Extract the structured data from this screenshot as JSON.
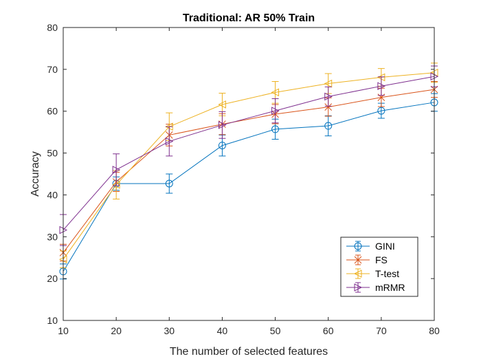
{
  "chart_data": {
    "type": "line",
    "title": "Traditional: AR 50% Train",
    "xlabel": "The number of selected features",
    "ylabel": "Accuracy",
    "x": [
      10,
      20,
      30,
      40,
      50,
      60,
      70,
      80
    ],
    "xlim": [
      10,
      80
    ],
    "ylim": [
      10,
      80
    ],
    "xticks": [
      10,
      20,
      30,
      40,
      50,
      60,
      70,
      80
    ],
    "yticks": [
      10,
      20,
      30,
      40,
      50,
      60,
      70,
      80
    ],
    "grid": false,
    "legend_position": "bottom-right",
    "series": [
      {
        "name": "GINI",
        "color": "#0072BD",
        "marker": "circle",
        "values": [
          21.7,
          42.7,
          42.7,
          51.8,
          55.7,
          56.5,
          60.1,
          62.1
        ],
        "errors": [
          1.8,
          1.6,
          2.3,
          2.5,
          2.4,
          2.4,
          1.8,
          2.1
        ]
      },
      {
        "name": "FS",
        "color": "#D95319",
        "marker": "x",
        "values": [
          26.2,
          43.1,
          54.3,
          56.9,
          59.3,
          61.0,
          63.3,
          65.2
        ],
        "errors": [
          2.0,
          2.3,
          2.6,
          2.5,
          2.3,
          2.2,
          2.2,
          1.9
        ]
      },
      {
        "name": "T-test",
        "color": "#EDB120",
        "marker": "triangle-left",
        "values": [
          24.6,
          42.4,
          56.3,
          61.6,
          64.5,
          66.6,
          68.1,
          69.2
        ],
        "errors": [
          2.0,
          3.4,
          3.3,
          2.7,
          2.6,
          2.4,
          2.1,
          2.3
        ]
      },
      {
        "name": "mRMR",
        "color": "#7E2F8E",
        "marker": "triangle-right",
        "values": [
          31.6,
          46.0,
          52.8,
          56.7,
          60.1,
          63.5,
          66.0,
          68.3
        ],
        "errors": [
          3.7,
          3.8,
          3.5,
          3.2,
          2.9,
          2.3,
          2.2,
          2.5
        ]
      }
    ]
  }
}
